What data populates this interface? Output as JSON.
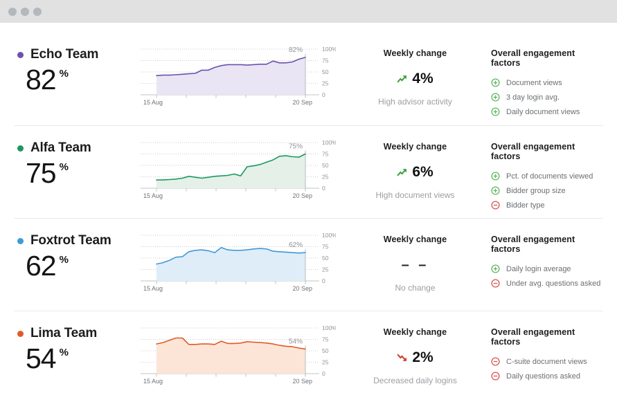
{
  "window": {
    "controls": [
      "close",
      "minimize",
      "maximize"
    ]
  },
  "columns": {
    "weekly_header": "Weekly change",
    "factors_header": "Overall engagement factors"
  },
  "axes": {
    "x_tick_labels": [
      "15 Aug",
      "20 Sep"
    ],
    "y_tick_labels": [
      [
        "100%",
        100
      ],
      [
        "75",
        75
      ],
      [
        "50",
        50
      ],
      [
        "25",
        25
      ],
      [
        "0",
        0
      ]
    ],
    "ylim": [
      0,
      100
    ]
  },
  "colors": {
    "plus": "#5fb65f",
    "minus": "#d9534f",
    "trend_up": "#3aa33a",
    "trend_down": "#cc3d2e",
    "grid": "#c9cbce",
    "baseline": "#c2c4c6",
    "marker": "#b9bbbe",
    "end_label": "#8f9296",
    "y_label": "#8f9296",
    "x_label": "#6e7174"
  },
  "rows": [
    {
      "team": "Echo Team",
      "score": "82",
      "unit": "%",
      "color": "#6b51ad",
      "weekly": {
        "trend": "up",
        "value": "4%",
        "note": "High advisor activity"
      },
      "factors": [
        {
          "sign": "plus",
          "label": "Document views"
        },
        {
          "sign": "plus",
          "label": "3 day login avg."
        },
        {
          "sign": "plus",
          "label": "Daily document views"
        }
      ]
    },
    {
      "team": "Alfa Team",
      "score": "75",
      "unit": "%",
      "color": "#19995f",
      "weekly": {
        "trend": "up",
        "value": "6%",
        "note": "High document views"
      },
      "factors": [
        {
          "sign": "plus",
          "label": "Pct. of documents viewed"
        },
        {
          "sign": "plus",
          "label": "Bidder group size"
        },
        {
          "sign": "minus",
          "label": "Bidder type"
        }
      ]
    },
    {
      "team": "Foxtrot Team",
      "score": "62",
      "unit": "%",
      "color": "#3e9ad8",
      "weekly": {
        "trend": "none",
        "value": "– –",
        "note": "No change"
      },
      "factors": [
        {
          "sign": "plus",
          "label": "Daily login average"
        },
        {
          "sign": "minus",
          "label": "Under avg. questions asked"
        }
      ]
    },
    {
      "team": "Lima Team",
      "score": "54",
      "unit": "%",
      "color": "#e05a28",
      "weekly": {
        "trend": "down",
        "value": "2%",
        "note": "Decreased daily logins"
      },
      "factors": [
        {
          "sign": "minus",
          "label": "C-suite document views"
        },
        {
          "sign": "minus",
          "label": "Daily questions asked"
        }
      ]
    }
  ],
  "chart_data": [
    {
      "type": "area",
      "title": "Echo Team engagement",
      "end_label": "82%",
      "color": "#6b51ad",
      "fill": "#e9e5f4",
      "grid": "dotted-horizontal",
      "x_range": [
        "15 Aug",
        "20 Sep"
      ],
      "ylim": [
        0,
        100
      ],
      "y_ticks": [
        0,
        25,
        50,
        75,
        100
      ],
      "values": [
        42,
        43,
        43,
        44,
        45,
        46,
        47,
        54,
        54,
        60,
        64,
        66,
        66,
        66,
        65,
        66,
        67,
        67,
        74,
        70,
        70,
        72,
        78,
        82
      ]
    },
    {
      "type": "area",
      "title": "Alfa Team engagement",
      "end_label": "75%",
      "color": "#19995f",
      "fill": "#e4f0e8",
      "grid": "dotted-horizontal",
      "x_range": [
        "15 Aug",
        "20 Sep"
      ],
      "ylim": [
        0,
        100
      ],
      "y_ticks": [
        0,
        25,
        50,
        75,
        100
      ],
      "values": [
        18,
        18,
        19,
        20,
        22,
        26,
        24,
        22,
        24,
        26,
        27,
        28,
        31,
        27,
        47,
        49,
        52,
        57,
        62,
        70,
        71,
        69,
        68,
        75
      ]
    },
    {
      "type": "area",
      "title": "Foxtrot Team engagement",
      "end_label": "62%",
      "color": "#3e9ad8",
      "fill": "#dfedf8",
      "grid": "dotted-horizontal",
      "x_range": [
        "15 Aug",
        "20 Sep"
      ],
      "ylim": [
        0,
        100
      ],
      "y_ticks": [
        0,
        25,
        50,
        75,
        100
      ],
      "values": [
        37,
        40,
        45,
        52,
        53,
        64,
        67,
        68,
        66,
        62,
        73,
        68,
        67,
        67,
        68,
        70,
        71,
        70,
        65,
        64,
        63,
        62,
        61,
        62
      ]
    },
    {
      "type": "area",
      "title": "Lima Team engagement",
      "end_label": "54%",
      "color": "#e05a28",
      "fill": "#fce5d6",
      "grid": "dotted-horizontal",
      "x_range": [
        "15 Aug",
        "20 Sep"
      ],
      "ylim": [
        0,
        100
      ],
      "y_ticks": [
        0,
        25,
        50,
        75,
        100
      ],
      "values": [
        65,
        68,
        73,
        78,
        78,
        64,
        64,
        65,
        65,
        64,
        71,
        66,
        66,
        67,
        70,
        69,
        68,
        67,
        65,
        62,
        60,
        59,
        56,
        54
      ]
    }
  ]
}
